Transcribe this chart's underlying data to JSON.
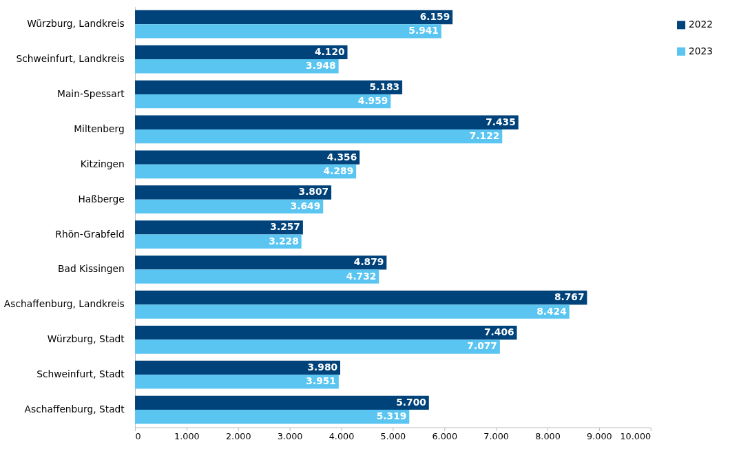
{
  "chart_data": {
    "type": "bar",
    "orientation": "horizontal",
    "categories": [
      "Würzburg, Landkreis",
      "Schweinfurt, Landkreis",
      "Main-Spessart",
      "Miltenberg",
      "Kitzingen",
      "Haßberge",
      "Rhön-Grabfeld",
      "Bad Kissingen",
      "Aschaffenburg, Landkreis",
      "Würzburg, Stadt",
      "Schweinfurt, Stadt",
      "Aschaffenburg, Stadt"
    ],
    "series": [
      {
        "name": "2022",
        "color": "#00427a",
        "values": [
          6159,
          4120,
          5183,
          7435,
          4356,
          3807,
          3257,
          4879,
          8767,
          7406,
          3980,
          5700
        ],
        "value_labels": [
          "6.159",
          "4.120",
          "5.183",
          "7.435",
          "4.356",
          "3.807",
          "3.257",
          "4.879",
          "8.767",
          "7.406",
          "3.980",
          "5.700"
        ]
      },
      {
        "name": "2023",
        "color": "#5bc5f2",
        "values": [
          5941,
          3948,
          4959,
          7122,
          4289,
          3649,
          3228,
          4732,
          8424,
          7077,
          3951,
          5319
        ],
        "value_labels": [
          "5.941",
          "3.948",
          "4.959",
          "7.122",
          "4.289",
          "3.649",
          "3.228",
          "4.732",
          "8.424",
          "7.077",
          "3.951",
          "5.319"
        ]
      }
    ],
    "xlim": [
      0,
      10000
    ],
    "xticks": [
      0,
      {
        "value": 1000,
        "label": "1.000"
      },
      {
        "value": 2000,
        "label": "2.000"
      },
      {
        "value": 3000,
        "label": "3.000"
      },
      {
        "value": 4000,
        "label": "4.000"
      },
      {
        "value": 5000,
        "label": "5.000"
      },
      {
        "value": 6000,
        "label": "6.000"
      },
      {
        "value": 7000,
        "label": "7.000"
      },
      {
        "value": 8000,
        "label": "8.000"
      },
      {
        "value": 9000,
        "label": "9.000"
      },
      {
        "value": 10000,
        "label": "10.000"
      }
    ],
    "grid": false,
    "legend": "right"
  }
}
